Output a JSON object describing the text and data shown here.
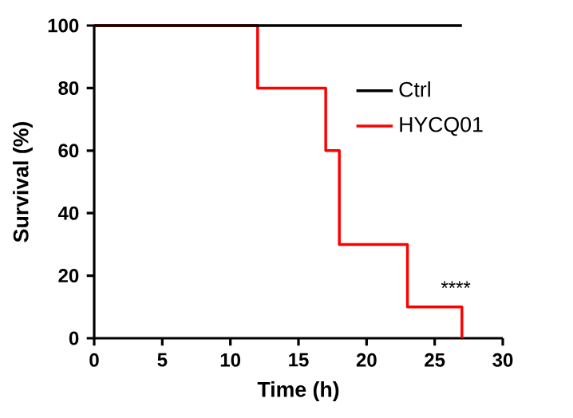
{
  "chart_data": {
    "type": "step",
    "xlabel": "Time (h)",
    "ylabel": "Survival (%)",
    "xlim": [
      0,
      30
    ],
    "xticks": [
      0,
      5,
      10,
      15,
      20,
      25,
      30
    ],
    "ylim": [
      0,
      100
    ],
    "yticks": [
      0,
      20,
      40,
      60,
      80,
      100
    ],
    "series": [
      {
        "name": "Ctrl",
        "color": "#000000",
        "x": [
          0,
          27
        ],
        "values": [
          100,
          100
        ]
      },
      {
        "name": "HYCQ01",
        "color": "#ff0000",
        "x": [
          0,
          12,
          17,
          18,
          23,
          27
        ],
        "values": [
          100,
          80,
          60,
          30,
          10,
          0
        ]
      }
    ],
    "annotations": [
      "****"
    ],
    "legend": "top right",
    "grid": false
  }
}
